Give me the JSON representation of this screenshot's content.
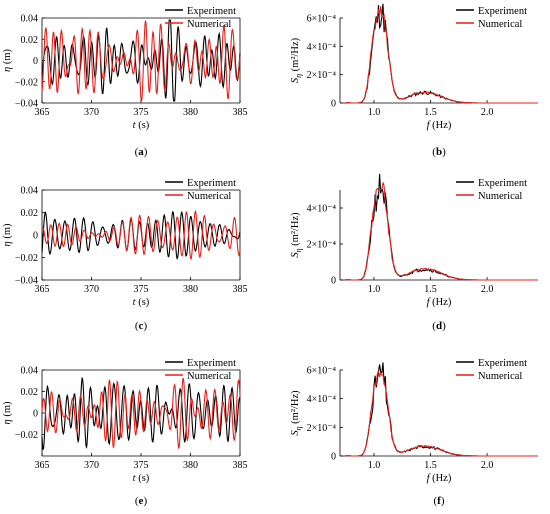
{
  "colors": {
    "experiment": "#000000",
    "numerical": "#e8201a"
  },
  "legend": {
    "experiment": "Experiment",
    "numerical": "Numerical"
  },
  "chart_data": [
    {
      "panel": "a",
      "caption": "(a)",
      "type": "line",
      "xlabel_var": "t",
      "xlabel_unit": "(s)",
      "ylabel_var": "η",
      "ylabel_unit": "(m)",
      "xlim": [
        365,
        385
      ],
      "ylim": [
        -0.04,
        0.04
      ],
      "xticks": [
        "365",
        "370",
        "375",
        "380",
        "385"
      ],
      "yticks": [
        "−0.04",
        "−0.02",
        "0",
        "0.02",
        "0.04"
      ],
      "legend_position": "top-right",
      "series": [
        {
          "name": "Experiment",
          "params": {
            "seed": 1,
            "amp": 1.0,
            "mix": 0.0
          }
        },
        {
          "name": "Numerical",
          "params": {
            "seed": 1,
            "amp": 1.0,
            "mix": 0.15
          }
        }
      ]
    },
    {
      "panel": "b",
      "caption": "(b)",
      "type": "line",
      "xlabel_var": "f",
      "xlabel_unit": "(Hz)",
      "ylabel_var": "S",
      "ylabel_sub": "η",
      "ylabel_unit": "(m²/Hz)",
      "xlim": [
        0.7,
        2.45
      ],
      "ylim": [
        0,
        0.0006
      ],
      "xticks": [
        "1.0",
        "1.5",
        "2.0"
      ],
      "yticks": [
        "0",
        "2×10⁻⁴",
        "4×10⁻⁴",
        "6×10⁻⁴"
      ],
      "legend_position": "top-right",
      "peak": 0.00062,
      "series": [
        {
          "name": "Experiment",
          "params": {
            "seed": 11,
            "peak": 0.00062
          }
        },
        {
          "name": "Numerical",
          "params": {
            "seed": 12,
            "peak": 0.00063
          }
        }
      ]
    },
    {
      "panel": "c",
      "caption": "(c)",
      "type": "line",
      "xlabel_var": "t",
      "xlabel_unit": "(s)",
      "ylabel_var": "η",
      "ylabel_unit": "(m)",
      "xlim": [
        365,
        385
      ],
      "ylim": [
        -0.04,
        0.04
      ],
      "xticks": [
        "365",
        "370",
        "375",
        "380",
        "385"
      ],
      "yticks": [
        "−0.04",
        "−0.02",
        "0",
        "0.02",
        "0.04"
      ],
      "legend_position": "top-right",
      "series": [
        {
          "name": "Experiment",
          "params": {
            "seed": 2,
            "amp": 0.8,
            "mix": 0.0
          }
        },
        {
          "name": "Numerical",
          "params": {
            "seed": 2,
            "amp": 0.85,
            "mix": 0.45
          }
        }
      ]
    },
    {
      "panel": "d",
      "caption": "(d)",
      "type": "line",
      "xlabel_var": "f",
      "xlabel_unit": "(Hz)",
      "ylabel_var": "S",
      "ylabel_sub": "η",
      "ylabel_unit": "(m²/Hz)",
      "xlim": [
        0.7,
        2.45
      ],
      "ylim": [
        0,
        0.0005
      ],
      "xticks": [
        "1.0",
        "1.5",
        "2.0"
      ],
      "yticks": [
        "0",
        "2×10⁻⁴",
        "4×10⁻⁴"
      ],
      "legend_position": "top-right",
      "series": [
        {
          "name": "Experiment",
          "params": {
            "seed": 21,
            "peak": 0.0005
          }
        },
        {
          "name": "Numerical",
          "params": {
            "seed": 22,
            "peak": 0.00052
          }
        }
      ]
    },
    {
      "panel": "e",
      "caption": "(e)",
      "type": "line",
      "xlabel_var": "t",
      "xlabel_unit": "(s)",
      "ylabel_var": "η",
      "ylabel_unit": "(m)",
      "xlim": [
        365,
        385
      ],
      "ylim": [
        -0.04,
        0.04
      ],
      "xticks": [
        "365",
        "370",
        "375",
        "380",
        "385"
      ],
      "yticks": [
        "−0.02",
        "0",
        "0.02",
        "0.04"
      ],
      "legend_position": "top-right",
      "series": [
        {
          "name": "Experiment",
          "params": {
            "seed": 3,
            "amp": 1.0,
            "mix": 0.0
          }
        },
        {
          "name": "Numerical",
          "params": {
            "seed": 3,
            "amp": 0.9,
            "mix": 0.55
          }
        }
      ]
    },
    {
      "panel": "f",
      "caption": "(f)",
      "type": "line",
      "xlabel_var": "f",
      "xlabel_unit": "(Hz)",
      "ylabel_var": "S",
      "ylabel_sub": "η",
      "ylabel_unit": "(m²/Hz)",
      "xlim": [
        0.7,
        2.45
      ],
      "ylim": [
        0,
        0.0006
      ],
      "xticks": [
        "1.0",
        "1.5",
        "2.0"
      ],
      "yticks": [
        "0",
        "2×10⁻⁴",
        "4×10⁻⁴",
        "6×10⁻⁴"
      ],
      "legend_position": "top-right",
      "series": [
        {
          "name": "Experiment",
          "params": {
            "seed": 31,
            "peak": 0.00056
          }
        },
        {
          "name": "Numerical",
          "params": {
            "seed": 32,
            "peak": 0.00058
          }
        }
      ]
    }
  ]
}
